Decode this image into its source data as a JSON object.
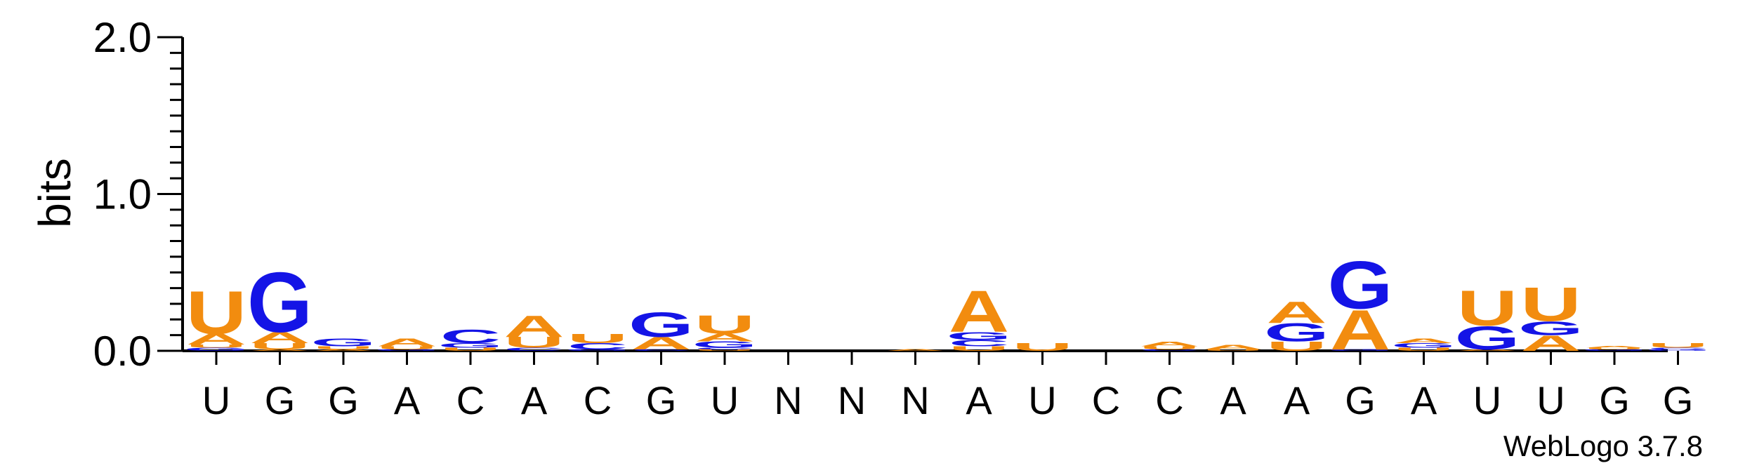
{
  "chart_data": {
    "type": "sequence-logo",
    "ylabel": "bits",
    "ylim": [
      0,
      2.0
    ],
    "y_ticks": [
      "0.0",
      "1.0",
      "2.0"
    ],
    "credit": "WebLogo 3.7.8",
    "colors": {
      "A": "#f28c0f",
      "U": "#f28c0f",
      "G": "#1414e6",
      "C": "#1414e6"
    },
    "consensus": [
      "U",
      "G",
      "G",
      "A",
      "C",
      "A",
      "C",
      "G",
      "U",
      "N",
      "N",
      "N",
      "A",
      "U",
      "C",
      "C",
      "A",
      "A",
      "G",
      "A",
      "U",
      "U",
      "G",
      "G"
    ],
    "stacks": [
      [
        [
          "G",
          0.02
        ],
        [
          "U",
          0.02
        ],
        [
          "A",
          0.07
        ],
        [
          "U",
          0.28
        ]
      ],
      [
        [
          "A",
          0.01
        ],
        [
          "U",
          0.04
        ],
        [
          "A",
          0.07
        ],
        [
          "G",
          0.39
        ]
      ],
      [
        [
          "A",
          0.01
        ],
        [
          "U",
          0.02
        ],
        [
          "G",
          0.05
        ]
      ],
      [
        [
          "G",
          0.01
        ],
        [
          "U",
          0.02
        ],
        [
          "A",
          0.05
        ]
      ],
      [
        [
          "U",
          0.02
        ],
        [
          "G",
          0.03
        ],
        [
          "C",
          0.09
        ]
      ],
      [
        [
          "C",
          0.02
        ],
        [
          "U",
          0.07
        ],
        [
          "A",
          0.14
        ]
      ],
      [
        [
          "G",
          0.01
        ],
        [
          "C",
          0.04
        ],
        [
          "U",
          0.06
        ]
      ],
      [
        [
          "C",
          0.01
        ],
        [
          "A",
          0.08
        ],
        [
          "G",
          0.16
        ]
      ],
      [
        [
          "U",
          0.01
        ],
        [
          "C",
          0.01
        ],
        [
          "G",
          0.04
        ],
        [
          "A",
          0.05
        ],
        [
          "U",
          0.12
        ]
      ],
      [],
      [],
      [
        [
          "A",
          0.01
        ]
      ],
      [
        [
          "U",
          0.03
        ],
        [
          "C",
          0.04
        ],
        [
          "G",
          0.05
        ],
        [
          "A",
          0.27
        ]
      ],
      [
        [
          "U",
          0.05
        ]
      ],
      [],
      [
        [
          "C",
          0.01
        ],
        [
          "U",
          0.02
        ],
        [
          "A",
          0.03
        ]
      ],
      [
        [
          "U",
          0.01
        ],
        [
          "A",
          0.03
        ]
      ],
      [
        [
          "U",
          0.06
        ],
        [
          "G",
          0.12
        ],
        [
          "A",
          0.14
        ]
      ],
      [
        [
          "G",
          0.01
        ],
        [
          "A",
          0.26
        ],
        [
          "G",
          0.31
        ]
      ],
      [
        [
          "U",
          0.02
        ],
        [
          "G",
          0.03
        ],
        [
          "A",
          0.03
        ]
      ],
      [
        [
          "A",
          0.01
        ],
        [
          "G",
          0.15
        ],
        [
          "U",
          0.23
        ]
      ],
      [
        [
          "A",
          0.1
        ],
        [
          "G",
          0.09
        ],
        [
          "U",
          0.22
        ]
      ],
      [
        [
          "G",
          0.01
        ],
        [
          "U",
          0.01
        ],
        [
          "A",
          0.01
        ]
      ],
      [
        [
          "G",
          0.01
        ],
        [
          "C",
          0.01
        ],
        [
          "U",
          0.03
        ]
      ]
    ]
  }
}
